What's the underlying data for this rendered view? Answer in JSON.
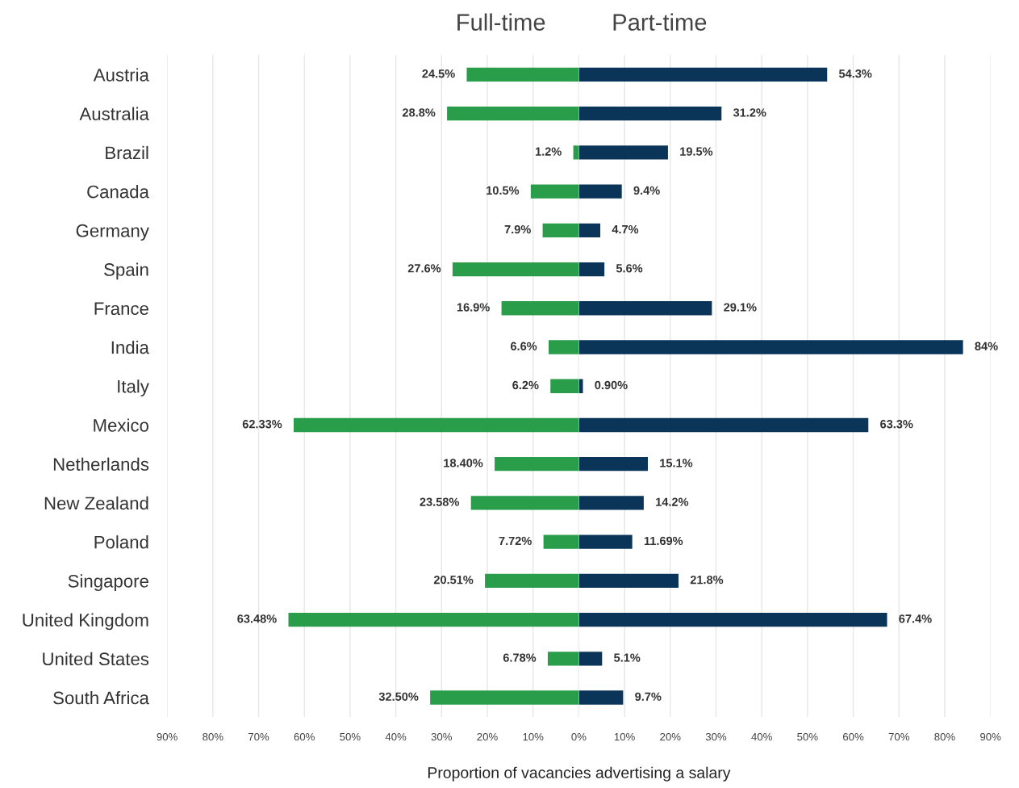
{
  "chart_data": [
    {
      "type": "bar",
      "orientation": "horizontal",
      "title": "Full-time",
      "categories": [
        "Austria",
        "Australia",
        "Brazil",
        "Canada",
        "Germany",
        "Spain",
        "France",
        "India",
        "Italy",
        "Mexico",
        "Netherlands",
        "New Zealand",
        "Poland",
        "Singapore",
        "United Kingdom",
        "United States",
        "South Africa"
      ],
      "series": [
        {
          "color": "#2a9d4a",
          "values": [
            24.5,
            28.8,
            1.2,
            10.5,
            7.9,
            27.6,
            16.9,
            6.6,
            6.2,
            62.33,
            18.4,
            23.58,
            7.72,
            20.51,
            63.48,
            6.78,
            32.5
          ],
          "value_labels": [
            "24.5%",
            "28.8%",
            "1.2%",
            "10.5%",
            "7.9%",
            "27.6%",
            "16.9%",
            "6.6%",
            "6.2%",
            "62.33%",
            "18.40%",
            "23.58%",
            "7.72%",
            "20.51%",
            "63.48%",
            "6.78%",
            "32.50%"
          ]
        }
      ],
      "xlim": [
        90,
        0
      ],
      "xticks": [
        {
          "value": 90,
          "label": "90%"
        },
        {
          "value": 80,
          "label": "80%"
        },
        {
          "value": 70,
          "label": "70%"
        },
        {
          "value": 60,
          "label": "60%"
        },
        {
          "value": 50,
          "label": "50%"
        },
        {
          "value": 40,
          "label": "40%"
        },
        {
          "value": 30,
          "label": "30%"
        },
        {
          "value": 20,
          "label": "20%"
        },
        {
          "value": 10,
          "label": "10%"
        },
        {
          "value": 0,
          "label": null
        }
      ],
      "grid": "x"
    },
    {
      "type": "bar",
      "orientation": "horizontal",
      "title": "Part-time",
      "xlabel": "Proportion of vacancies advertising a salary",
      "categories": [
        null,
        null,
        null,
        null,
        null,
        null,
        null,
        null,
        null,
        null,
        null,
        null,
        null,
        null,
        null,
        null,
        null
      ],
      "series": [
        {
          "color": "#0b3558",
          "values": [
            54.3,
            31.2,
            19.5,
            9.4,
            4.7,
            5.6,
            29.1,
            84,
            0.9,
            63.3,
            15.1,
            14.2,
            11.69,
            21.8,
            67.4,
            5.1,
            9.7
          ],
          "value_labels": [
            "54.3%",
            "31.2%",
            "19.5%",
            "9.4%",
            "4.7%",
            "5.6%",
            "29.1%",
            "84%",
            "0.90%",
            "63.3%",
            "15.1%",
            "14.2%",
            "11.69%",
            "21.8%",
            "67.4%",
            "5.1%",
            "9.7%"
          ]
        }
      ],
      "xlim": [
        0,
        90
      ],
      "xticks": [
        {
          "value": 0,
          "label": "0%"
        },
        {
          "value": 10,
          "label": "10%"
        },
        {
          "value": 20,
          "label": "20%"
        },
        {
          "value": 30,
          "label": "30%"
        },
        {
          "value": 40,
          "label": "40%"
        },
        {
          "value": 50,
          "label": "50%"
        },
        {
          "value": 60,
          "label": "60%"
        },
        {
          "value": 70,
          "label": "70%"
        },
        {
          "value": 80,
          "label": "80%"
        },
        {
          "value": 90,
          "label": "90%"
        }
      ],
      "grid": "x",
      "tick_labels": "x"
    }
  ]
}
